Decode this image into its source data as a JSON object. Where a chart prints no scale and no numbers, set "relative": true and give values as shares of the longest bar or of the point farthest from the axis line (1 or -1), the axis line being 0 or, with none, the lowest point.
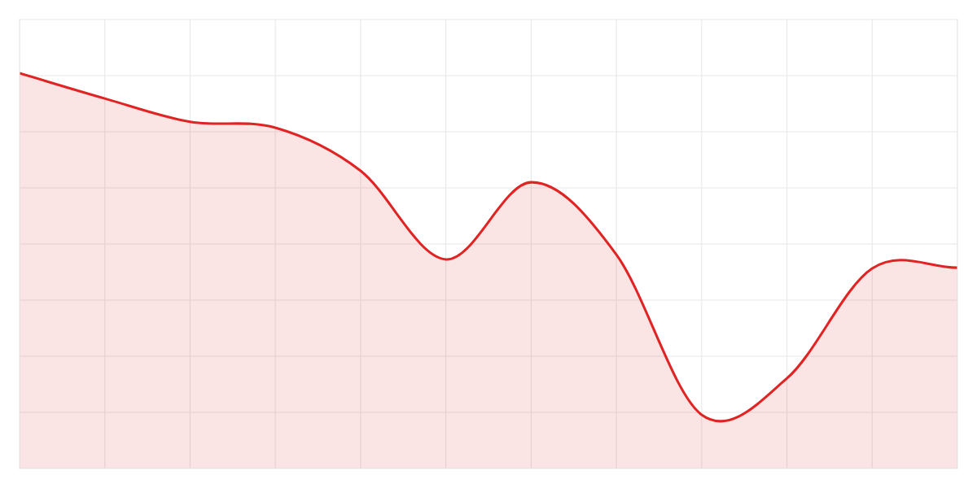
{
  "chart_data": {
    "type": "area",
    "relative": true,
    "grid": true,
    "categories": [
      null,
      null,
      null,
      null,
      null,
      null,
      null,
      null,
      null,
      null,
      null,
      null
    ],
    "series": [
      {
        "color": "#e02424",
        "values": [
          1,
          0.936,
          0.877,
          0.862,
          0.753,
          0.529,
          0.724,
          0.541,
          0.136,
          0.228,
          0.506,
          0.508
        ]
      }
    ]
  }
}
